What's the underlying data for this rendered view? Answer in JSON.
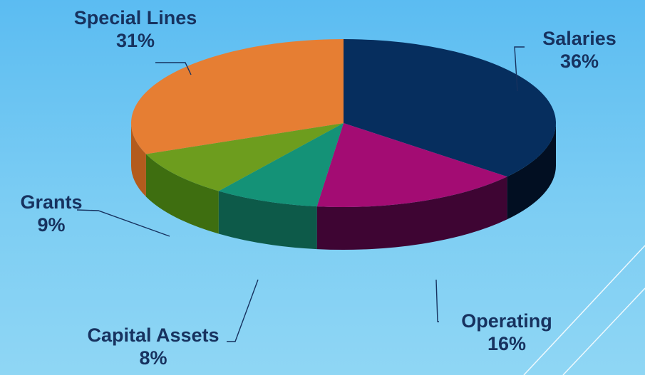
{
  "chart_data": {
    "type": "pie",
    "style": "3d",
    "title": "",
    "slices": [
      {
        "label": "Salaries",
        "value": 36,
        "display": "36%",
        "color": "#062e5e",
        "side": "#020f22"
      },
      {
        "label": "Operating",
        "value": 16,
        "display": "16%",
        "color": "#a30c73",
        "side": "#3e0533"
      },
      {
        "label": "Capital Assets",
        "value": 8,
        "display": "8%",
        "color": "#149277",
        "side": "#0d5a49"
      },
      {
        "label": "Grants",
        "value": 9,
        "display": "9%",
        "color": "#6d9d1e",
        "side": "#3e6e10"
      },
      {
        "label": "Special Lines",
        "value": 31,
        "display": "31%",
        "color": "#e67e33",
        "side": "#b35b1d"
      }
    ]
  },
  "background": {
    "top": "#5bbcf2",
    "bottom": "#8fd6f4"
  }
}
